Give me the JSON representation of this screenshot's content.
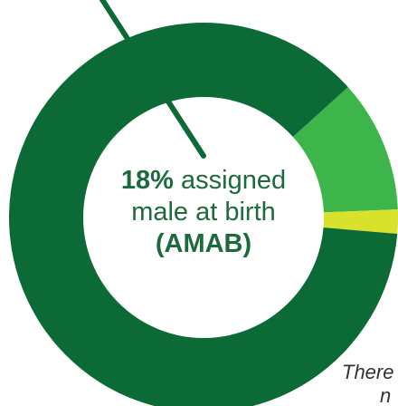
{
  "chart_data": {
    "type": "donut",
    "values": [
      11,
      2,
      87
    ],
    "colors": [
      "#3db54a",
      "#d8e22c",
      "#0b6a36"
    ],
    "annotations": {
      "highlight": "18%",
      "line1": "assigned",
      "line2": "male at birth",
      "line3": "(AMAB)"
    },
    "note": [
      "There",
      "n"
    ]
  }
}
